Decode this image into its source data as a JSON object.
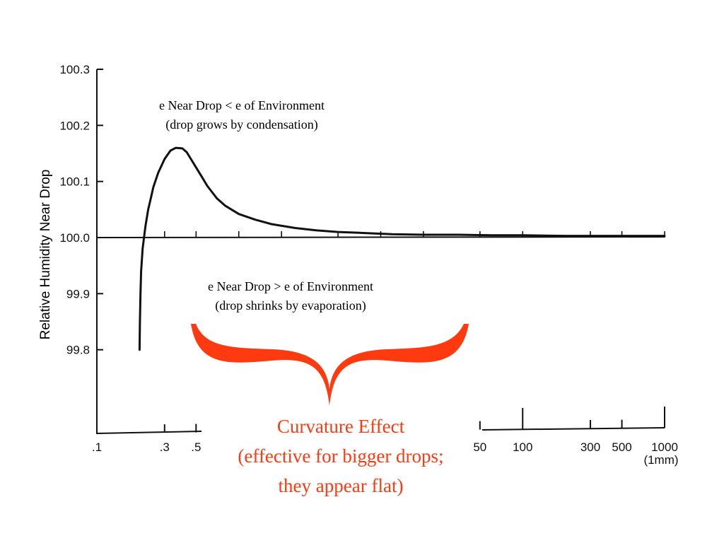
{
  "chart_data": {
    "type": "line",
    "ylabel": "Relative Humidity Near Drop",
    "x_scale": "log",
    "xlim": [
      0.1,
      1000
    ],
    "ylim": [
      99.65,
      100.3
    ],
    "y_ticks": [
      {
        "value": 100.3,
        "label": "100.3"
      },
      {
        "value": 100.2,
        "label": "100.2"
      },
      {
        "value": 100.1,
        "label": "100.1"
      },
      {
        "value": 100.0,
        "label": "100.0"
      },
      {
        "value": 99.9,
        "label": "99.9"
      },
      {
        "value": 99.8,
        "label": "99.8"
      }
    ],
    "x_ticks": [
      {
        "value": 0.1,
        "label": ".1"
      },
      {
        "value": 0.3,
        "label": ".3"
      },
      {
        "value": 0.5,
        "label": ".5"
      },
      {
        "value": 50,
        "label": "50"
      },
      {
        "value": 100,
        "label": "100"
      },
      {
        "value": 300,
        "label": "300"
      },
      {
        "value": 500,
        "label": "500"
      },
      {
        "value": 1000,
        "label": "1000"
      }
    ],
    "x_unit_note": "(1mm)",
    "reference_line": {
      "y": 100.0
    },
    "series": [
      {
        "x": [
          0.2,
          0.201,
          0.203,
          0.205,
          0.21,
          0.215,
          0.22,
          0.23,
          0.24,
          0.25,
          0.27,
          0.3,
          0.33,
          0.36,
          0.4,
          0.43,
          0.46,
          0.5,
          0.55,
          0.6,
          0.7,
          0.8,
          1,
          1.3,
          1.7,
          2.5,
          3.5,
          5,
          8,
          12,
          20,
          35,
          60,
          100,
          200,
          400,
          1000
        ],
        "y": [
          99.8,
          99.85,
          99.9,
          99.94,
          99.98,
          100.0,
          100.02,
          100.05,
          100.07,
          100.09,
          100.115,
          100.14,
          100.155,
          100.16,
          100.159,
          100.152,
          100.14,
          100.125,
          100.108,
          100.092,
          100.07,
          100.057,
          100.042,
          100.032,
          100.024,
          100.017,
          100.013,
          100.01,
          100.008,
          100.006,
          100.005,
          100.005,
          100.004,
          100.004,
          100.003,
          100.003,
          100.003
        ]
      }
    ]
  },
  "annotations": {
    "above_line1": "e Near Drop < e of Environment",
    "above_line2": "(drop grows by condensation)",
    "below_line1": "e Near Drop > e of Environment",
    "below_line2": "(drop shrinks by evaporation)",
    "callout_line1": "Curvature Effect",
    "callout_line2": "(effective for bigger drops;",
    "callout_line3": "they appear flat)",
    "callout_color": "#ff3a10"
  }
}
